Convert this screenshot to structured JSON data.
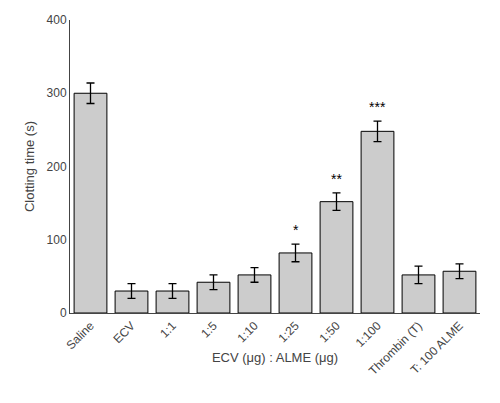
{
  "chart_data": {
    "type": "bar",
    "categories": [
      "Saline",
      "ECV",
      "1:1",
      "1:5",
      "1:10",
      "1:25",
      "1:50",
      "1:100",
      "Thrombin (T)",
      "T: 100 ALME"
    ],
    "values": [
      300,
      30,
      30,
      42,
      52,
      82,
      152,
      248,
      52,
      57
    ],
    "errors": [
      14,
      10,
      10,
      10,
      10,
      12,
      12,
      14,
      12,
      10
    ],
    "color": "#cccccc",
    "xlabel": "ECV (μg) : ALME (μg)",
    "ylabel": "Clotting time (s)",
    "ylim": [
      0,
      400
    ],
    "yticks": [
      0,
      100,
      200,
      300,
      400
    ],
    "grid": false,
    "annotations": [
      {
        "x": "1:25",
        "text": "*"
      },
      {
        "x": "1:50",
        "text": "**"
      },
      {
        "x": "1:100",
        "text": "***"
      }
    ]
  }
}
